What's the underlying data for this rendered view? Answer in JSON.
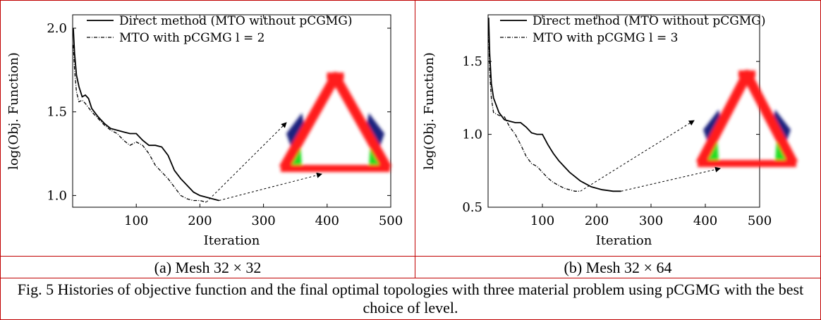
{
  "colors": {
    "border": "#c00000",
    "tri_red": "#ff1a1a",
    "tri_blue": "#1a237e",
    "tri_green": "#22dd22"
  },
  "subcaptions": {
    "a": "(a) Mesh   32 × 32",
    "b": "(b) Mesh   32 × 64"
  },
  "caption": "Fig. 5 Histories of objective function and the final optimal topologies with three material problem using pCGMG with the best choice of level.",
  "chart_data": [
    {
      "type": "line",
      "xlabel": "Iteration",
      "ylabel": "log(Obj. Function)",
      "xlim": [
        0,
        500
      ],
      "ylim": [
        0.93,
        2.08
      ],
      "xticks": [
        100,
        200,
        300,
        400,
        500
      ],
      "yticks": [
        1.0,
        1.5,
        2.0
      ],
      "ytick_labels": [
        "1.0",
        "1.5",
        "2.0"
      ],
      "grid": false,
      "legend_position": "top-right",
      "inset": "optimal-topology-triangle",
      "series": [
        {
          "name": "Direct method (MTO without pCGMG)",
          "style": "solid",
          "x": [
            1,
            3,
            6,
            10,
            15,
            20,
            25,
            30,
            40,
            50,
            60,
            70,
            80,
            90,
            100,
            110,
            120,
            130,
            140,
            150,
            160,
            170,
            180,
            190,
            200,
            210,
            220,
            230
          ],
          "y": [
            2.0,
            1.85,
            1.72,
            1.65,
            1.59,
            1.6,
            1.58,
            1.52,
            1.47,
            1.43,
            1.4,
            1.39,
            1.38,
            1.37,
            1.37,
            1.33,
            1.3,
            1.3,
            1.29,
            1.24,
            1.15,
            1.1,
            1.06,
            1.02,
            1.0,
            0.99,
            0.98,
            0.97
          ]
        },
        {
          "name": "MTO with pCGMG l = 2",
          "style": "dashdot",
          "x": [
            1,
            3,
            6,
            10,
            15,
            20,
            30,
            40,
            50,
            60,
            70,
            80,
            90,
            100,
            110,
            120,
            130,
            140,
            150,
            160,
            170,
            180,
            190,
            200,
            210
          ],
          "y": [
            1.9,
            1.75,
            1.62,
            1.56,
            1.57,
            1.55,
            1.5,
            1.46,
            1.42,
            1.39,
            1.37,
            1.33,
            1.3,
            1.32,
            1.3,
            1.25,
            1.18,
            1.14,
            1.1,
            1.05,
            1.0,
            0.98,
            0.97,
            0.97,
            0.96
          ]
        }
      ]
    },
    {
      "type": "line",
      "xlabel": "Iteration",
      "ylabel": "log(Obj. Function)",
      "xlim": [
        0,
        500
      ],
      "ylim": [
        0.5,
        1.82
      ],
      "xticks": [
        100,
        200,
        300,
        400,
        500
      ],
      "yticks": [
        0.5,
        1.0,
        1.5
      ],
      "ytick_labels": [
        "0.5",
        "1.0",
        "1.5"
      ],
      "grid": false,
      "legend_position": "top-right",
      "inset": "optimal-topology-triangle",
      "series": [
        {
          "name": "Direct method (MTO without pCGMG)",
          "style": "solid",
          "x": [
            1,
            3,
            6,
            10,
            15,
            20,
            30,
            40,
            50,
            60,
            70,
            80,
            90,
            100,
            110,
            120,
            130,
            140,
            150,
            160,
            170,
            180,
            190,
            200,
            210,
            220,
            230,
            245
          ],
          "y": [
            1.8,
            1.55,
            1.35,
            1.25,
            1.2,
            1.15,
            1.1,
            1.09,
            1.08,
            1.08,
            1.05,
            1.01,
            1.0,
            1.0,
            0.93,
            0.87,
            0.82,
            0.78,
            0.74,
            0.71,
            0.68,
            0.66,
            0.64,
            0.63,
            0.62,
            0.615,
            0.61,
            0.61
          ]
        },
        {
          "name": "MTO with pCGMG l = 3",
          "style": "dashdot",
          "x": [
            1,
            3,
            6,
            10,
            15,
            20,
            30,
            40,
            50,
            60,
            70,
            80,
            90,
            100,
            110,
            120,
            130,
            140,
            150,
            160,
            170
          ],
          "y": [
            1.7,
            1.42,
            1.25,
            1.15,
            1.14,
            1.13,
            1.12,
            1.05,
            1.0,
            0.93,
            0.85,
            0.8,
            0.78,
            0.74,
            0.7,
            0.67,
            0.65,
            0.63,
            0.62,
            0.61,
            0.61
          ]
        }
      ]
    }
  ]
}
